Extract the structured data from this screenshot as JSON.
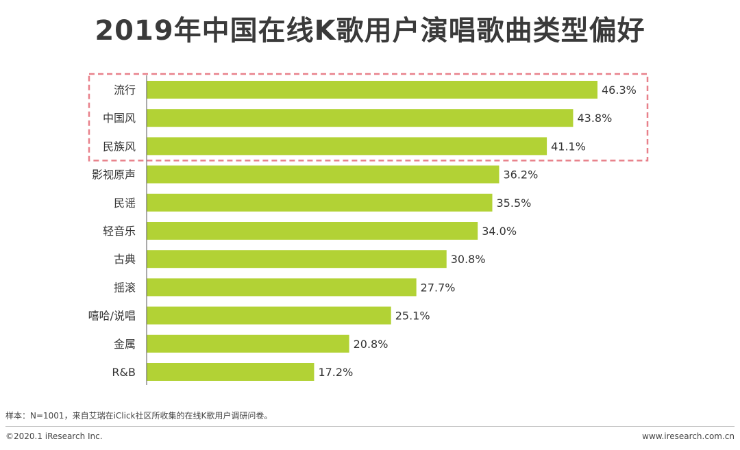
{
  "title": "2019年中国在线K歌用户演唱歌曲类型偏好",
  "chart_data": {
    "type": "bar",
    "orientation": "horizontal",
    "categories": [
      "流行",
      "中国风",
      "民族风",
      "影视原声",
      "民谣",
      "轻音乐",
      "古典",
      "摇滚",
      "嘻哈/说唱",
      "金属",
      "R&B"
    ],
    "values": [
      46.3,
      43.8,
      41.1,
      36.2,
      35.5,
      34.0,
      30.8,
      27.7,
      25.1,
      20.8,
      17.2
    ],
    "value_labels": [
      "46.3%",
      "43.8%",
      "41.1%",
      "36.2%",
      "35.5%",
      "34.0%",
      "30.8%",
      "27.7%",
      "25.1%",
      "20.8%",
      "17.2%"
    ],
    "unit": "%",
    "xlim": [
      0,
      50
    ],
    "grid": false,
    "highlighted_categories": [
      "流行",
      "中国风",
      "民族风"
    ],
    "colors": {
      "bar": "#b2d235",
      "highlight_border": "#e8808a",
      "axis": "#555555"
    }
  },
  "footer": {
    "note": "样本：N=1001，来自艾瑞在iClick社区所收集的在线K歌用户调研问卷。",
    "copyright": "©2020.1 iResearch Inc.",
    "website": "www.iresearch.com.cn"
  }
}
